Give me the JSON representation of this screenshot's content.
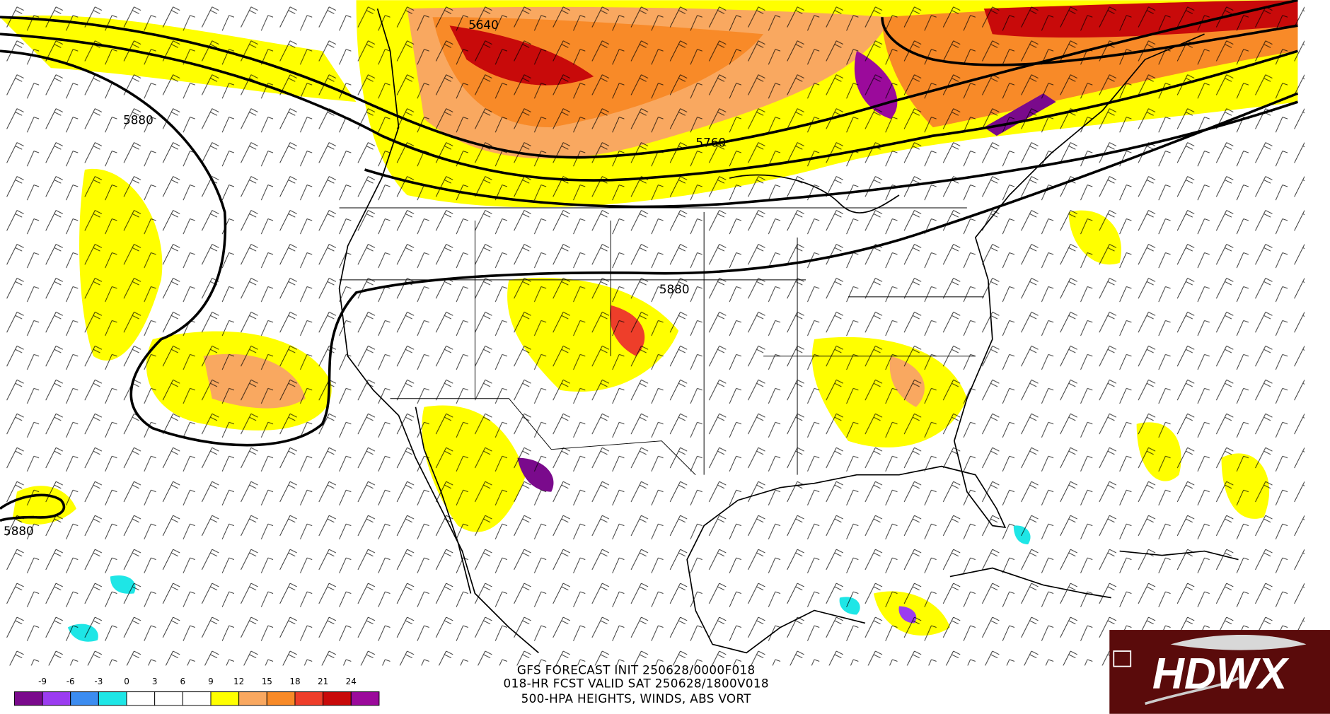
{
  "contour_labels": [
    "5640",
    "5880",
    "5760",
    "5880",
    "5880"
  ],
  "caption": [
    "GFS FORECAST INIT 250628/0000F018",
    "018-HR FCST VALID SAT 250628/1800V018",
    "500-HPA HEIGHTS, WINDS, ABS VORT"
  ],
  "colorbar": {
    "labels": [
      "-9",
      "-6",
      "-3",
      "0",
      "3",
      "6",
      "9",
      "12",
      "15",
      "18",
      "21",
      "24"
    ],
    "colors": [
      "#7a0a8c",
      "#9b3cf0",
      "#3c8cf0",
      "#1ee6e6",
      "#ffffff",
      "#ffffff",
      "#ffffff",
      "#ffff00",
      "#f9a860",
      "#f88a28",
      "#ee3e2a",
      "#c80a0a",
      "#9b0a9b"
    ]
  },
  "logo": "HDWX"
}
